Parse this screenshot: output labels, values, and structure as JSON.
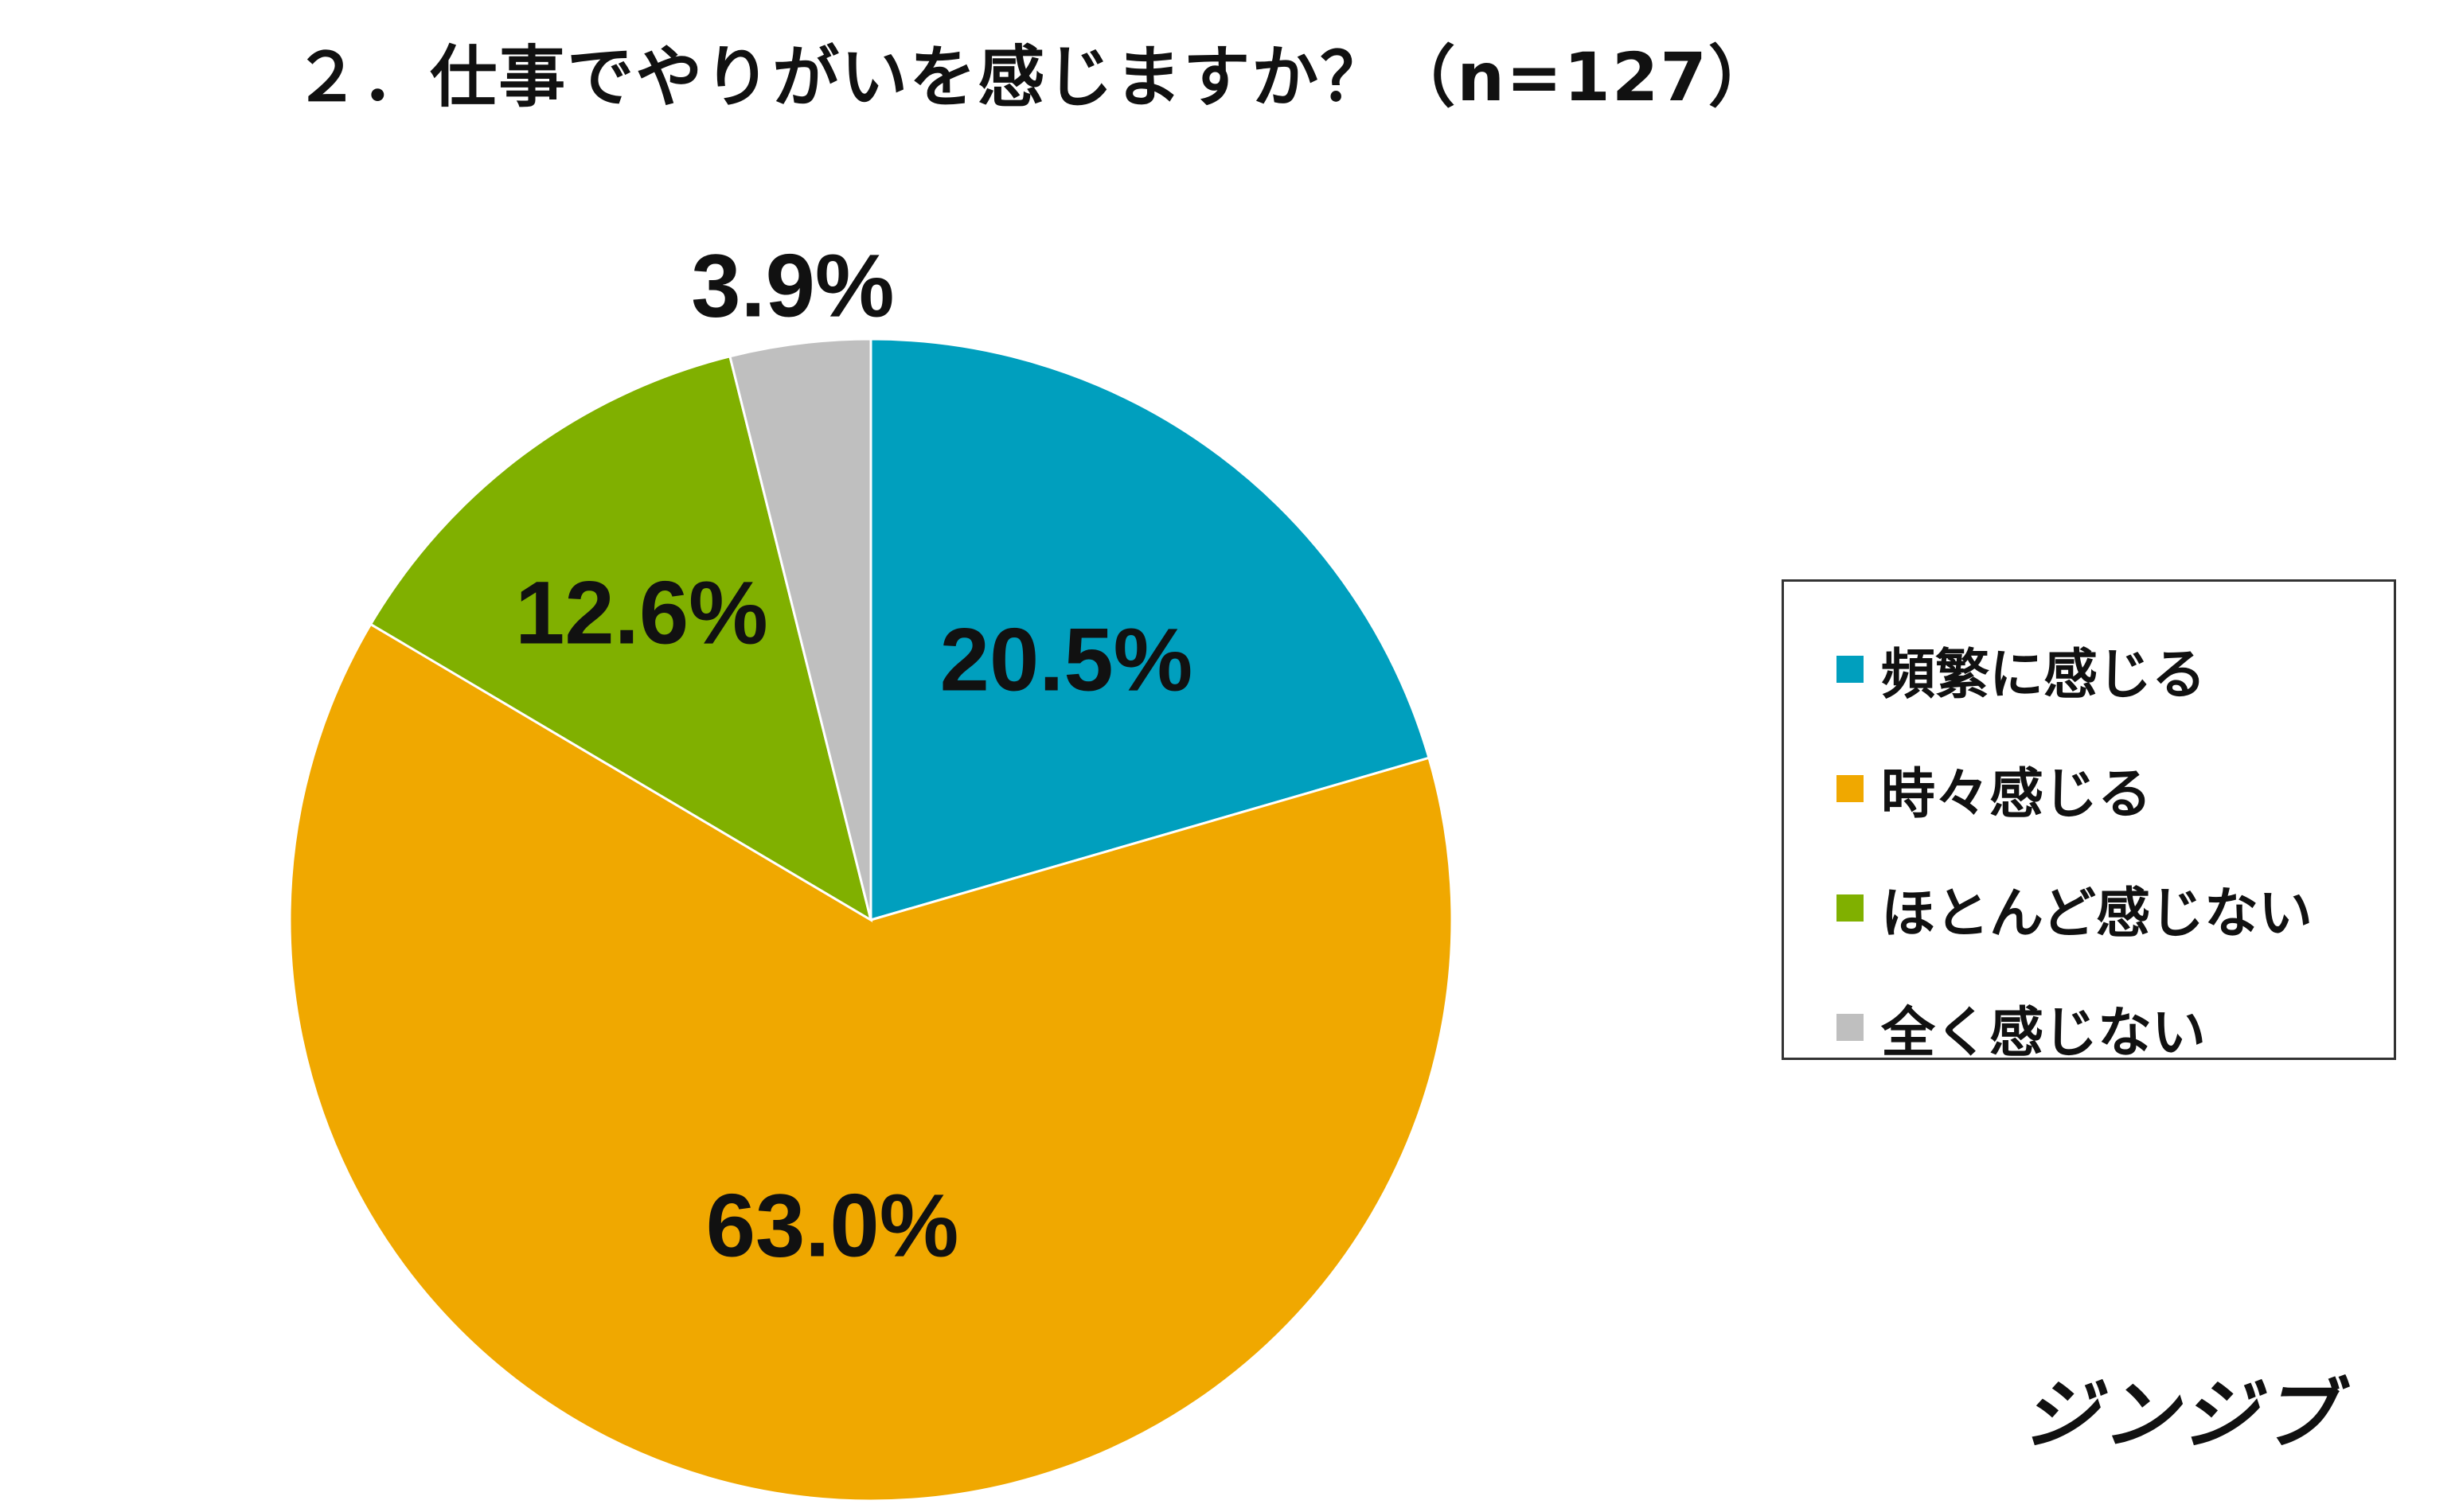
{
  "title": "２．仕事でやりがいを感じますか？（n=127）",
  "brand": "ジンジブ",
  "chart_data": {
    "type": "pie",
    "start_angle_deg": 0,
    "direction": "clockwise",
    "slices": [
      {
        "label": "頻繁に感じる",
        "value": 20.5,
        "display": "20.5%",
        "color": "#009FBE"
      },
      {
        "label": "時々感じる",
        "value": 63.0,
        "display": "63.0%",
        "color": "#F0A800"
      },
      {
        "label": "ほとんど感じない",
        "value": 12.6,
        "display": "12.6%",
        "color": "#80B000"
      },
      {
        "label": "全く感じない",
        "value": 3.9,
        "display": "3.9%",
        "color": "#BFBFBF"
      }
    ],
    "legend_position": "right"
  }
}
